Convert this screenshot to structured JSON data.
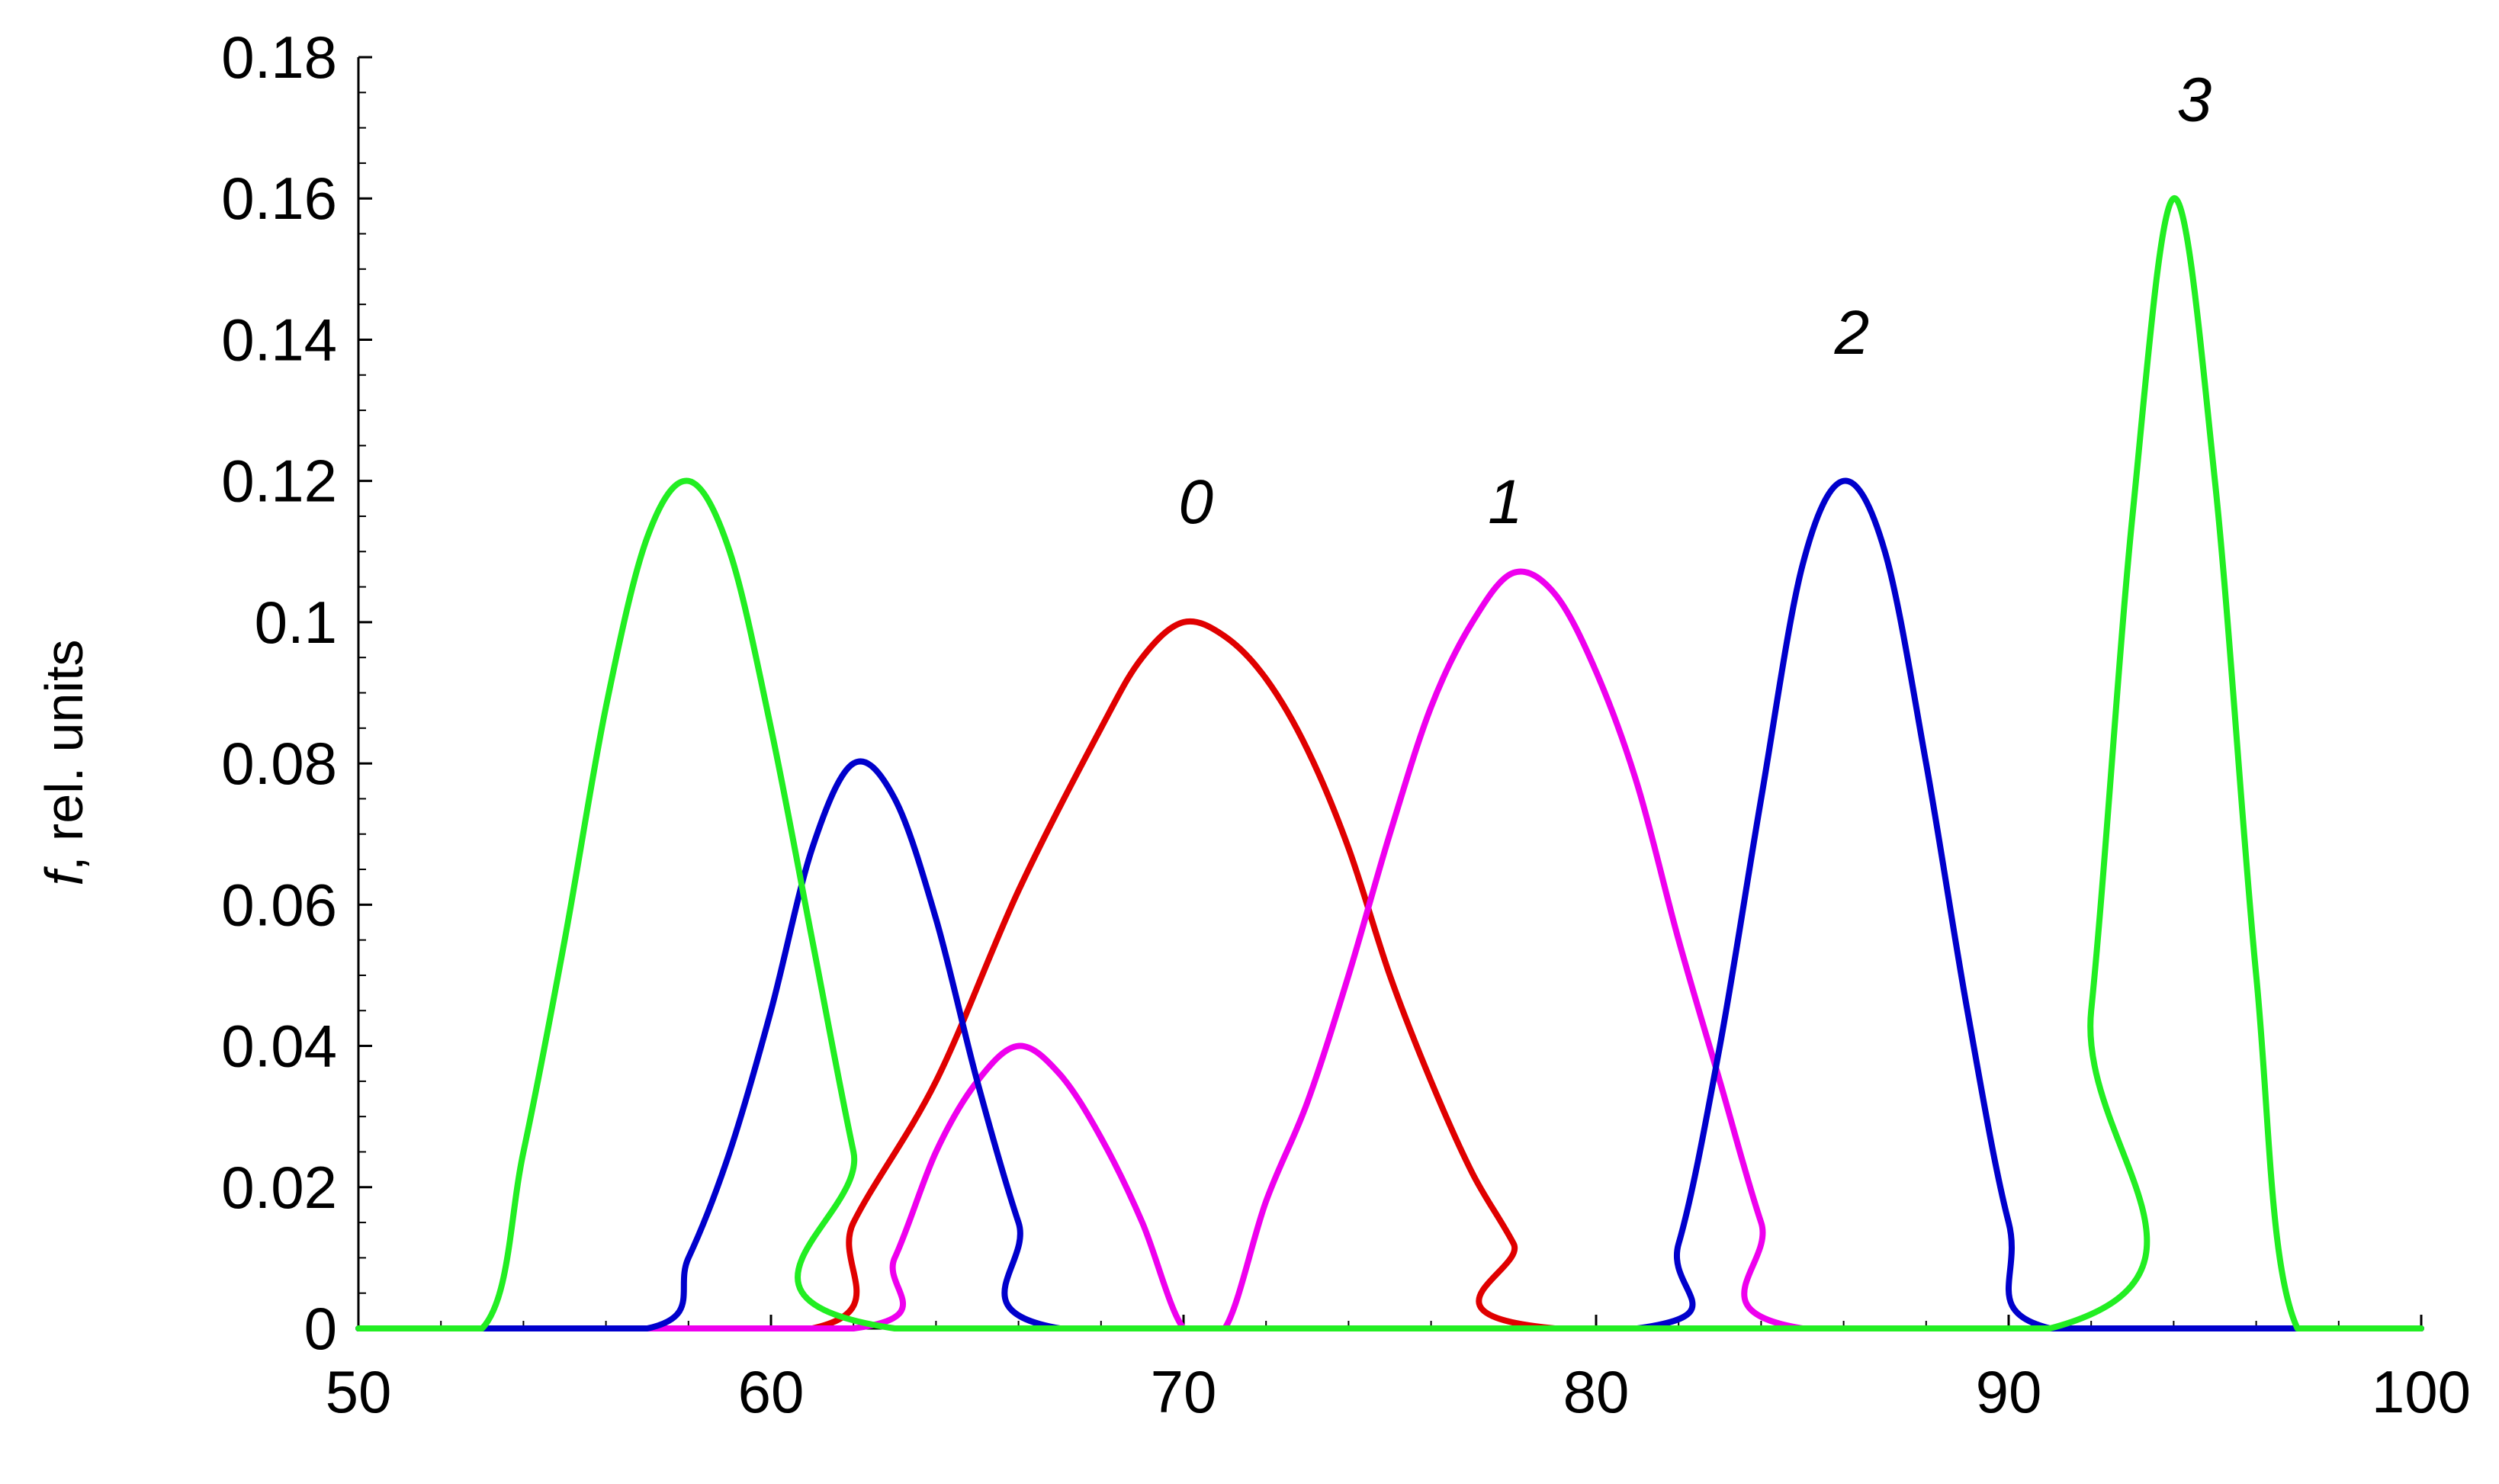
{
  "chart_data": {
    "type": "line",
    "title": "",
    "ylabel_italic": "f",
    "ylabel_rest": ", rel. units",
    "xlabel": "",
    "xlim": [
      50,
      100
    ],
    "ylim": [
      0,
      0.18
    ],
    "x_ticks": [
      "50",
      "60",
      "70",
      "80",
      "90",
      "100"
    ],
    "y_ticks": [
      "0",
      "0.02",
      "0.04",
      "0.06",
      "0.08",
      "0.1",
      "0.12",
      "0.14",
      "0.16",
      "0.18"
    ],
    "grid": false,
    "colors": {
      "red": "#e00000",
      "magenta": "#ee00ee",
      "blue": "#0000cc",
      "green": "#22ee22"
    },
    "series": [
      {
        "label": "0",
        "color": "red",
        "points": [
          [
            50,
            0
          ],
          [
            61,
            0
          ],
          [
            62,
            0.015
          ],
          [
            64,
            0.035
          ],
          [
            66,
            0.062
          ],
          [
            68,
            0.085
          ],
          [
            69,
            0.095
          ],
          [
            70,
            0.1
          ],
          [
            71,
            0.098
          ],
          [
            72,
            0.092
          ],
          [
            73,
            0.082
          ],
          [
            74,
            0.068
          ],
          [
            75,
            0.05
          ],
          [
            76,
            0.035
          ],
          [
            77,
            0.022
          ],
          [
            78,
            0.012
          ],
          [
            79,
            0
          ],
          [
            100,
            0
          ]
        ]
      },
      {
        "label": "1",
        "color": "magenta",
        "points": [
          [
            50,
            0
          ],
          [
            62,
            0
          ],
          [
            63,
            0.01
          ],
          [
            64,
            0.025
          ],
          [
            65,
            0.035
          ],
          [
            66,
            0.04
          ],
          [
            67,
            0.036
          ],
          [
            68,
            0.027
          ],
          [
            69,
            0.015
          ],
          [
            70,
            0
          ],
          [
            71,
            0
          ],
          [
            72,
            0.018
          ],
          [
            73,
            0.032
          ],
          [
            74,
            0.05
          ],
          [
            75,
            0.07
          ],
          [
            76,
            0.088
          ],
          [
            77,
            0.1
          ],
          [
            78,
            0.107
          ],
          [
            79,
            0.104
          ],
          [
            80,
            0.093
          ],
          [
            81,
            0.077
          ],
          [
            82,
            0.055
          ],
          [
            83,
            0.035
          ],
          [
            84,
            0.015
          ],
          [
            85,
            0
          ],
          [
            100,
            0
          ]
        ]
      },
      {
        "label": "2",
        "color": "blue",
        "points": [
          [
            50,
            0
          ],
          [
            57,
            0
          ],
          [
            58,
            0.01
          ],
          [
            59,
            0.025
          ],
          [
            60,
            0.045
          ],
          [
            61,
            0.068
          ],
          [
            62,
            0.08
          ],
          [
            63,
            0.075
          ],
          [
            64,
            0.058
          ],
          [
            65,
            0.035
          ],
          [
            66,
            0.015
          ],
          [
            67,
            0
          ],
          [
            81,
            0
          ],
          [
            82,
            0.012
          ],
          [
            83,
            0.04
          ],
          [
            84,
            0.075
          ],
          [
            85,
            0.108
          ],
          [
            86,
            0.12
          ],
          [
            87,
            0.11
          ],
          [
            88,
            0.08
          ],
          [
            89,
            0.045
          ],
          [
            90,
            0.015
          ],
          [
            91,
            0
          ],
          [
            100,
            0
          ]
        ]
      },
      {
        "label": "3",
        "color": "green",
        "points": [
          [
            50,
            0
          ],
          [
            53,
            0
          ],
          [
            54,
            0.025
          ],
          [
            55,
            0.055
          ],
          [
            56,
            0.088
          ],
          [
            57,
            0.112
          ],
          [
            58,
            0.12
          ],
          [
            59,
            0.11
          ],
          [
            60,
            0.085
          ],
          [
            61,
            0.055
          ],
          [
            62,
            0.025
          ],
          [
            63,
            0
          ],
          [
            91,
            0
          ],
          [
            92,
            0.045
          ],
          [
            93,
            0.115
          ],
          [
            94,
            0.16
          ],
          [
            95,
            0.12
          ],
          [
            96,
            0.05
          ],
          [
            97,
            0
          ],
          [
            100,
            0
          ]
        ]
      }
    ],
    "curve_labels": [
      {
        "text": "0",
        "x": 70.3,
        "y": 0.114
      },
      {
        "text": "1",
        "x": 77.8,
        "y": 0.114
      },
      {
        "text": "2",
        "x": 86.2,
        "y": 0.138
      },
      {
        "text": "3",
        "x": 94.5,
        "y": 0.171
      }
    ]
  }
}
